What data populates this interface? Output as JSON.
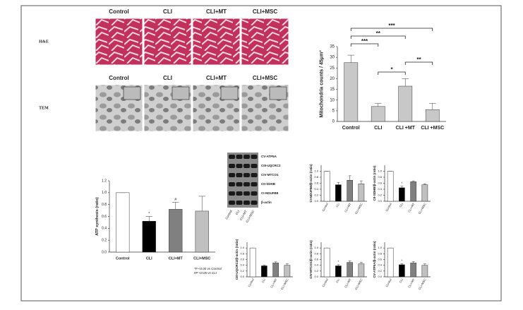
{
  "panels": {
    "histology": {
      "columns": [
        "Control",
        "CLI",
        "CLI+MT",
        "CLI+MSC"
      ],
      "rows": [
        "H&E",
        "TEM"
      ]
    },
    "blot": {
      "bands": [
        "CV-ATP5A",
        "CIII-UQCRC2",
        "CIV-MTCO1",
        "CII-SDHB",
        "CI-NDUFB8",
        "β-actin"
      ],
      "lanes": [
        "Control",
        "CLI",
        "CLI+MT",
        "CLI+MSC"
      ]
    }
  },
  "chart_data": [
    {
      "type": "bar",
      "ylabel": "Mitochondria counts / 45μm²",
      "categories": [
        "Control",
        "CLI",
        "CLI +MT",
        "CLI +MSC"
      ],
      "values": [
        27.5,
        7,
        16.5,
        5.5
      ],
      "errors": [
        3.5,
        1.5,
        3.5,
        3
      ],
      "colors": [
        "#c8c8c8",
        "#c8c8c8",
        "#c8c8c8",
        "#c8c8c8"
      ],
      "ylim": [
        0,
        35
      ],
      "yticks": [
        0,
        5,
        10,
        15,
        20,
        25,
        30,
        35
      ],
      "comparisons": [
        {
          "pair": [
            "Control",
            "CLI +MSC"
          ],
          "label": "***"
        },
        {
          "pair": [
            "Control",
            "CLI +MT"
          ],
          "label": "**"
        },
        {
          "pair": [
            "Control",
            "CLI"
          ],
          "label": "***"
        },
        {
          "pair": [
            "CLI +MT",
            "CLI +MSC"
          ],
          "label": "**"
        },
        {
          "pair": [
            "CLI",
            "CLI +MT"
          ],
          "label": "*"
        }
      ]
    },
    {
      "type": "bar",
      "ylabel": "ATP synthesis (ratio)",
      "categories": [
        "Control",
        "CLI",
        "CLI+MT",
        "CLI+MSC"
      ],
      "values": [
        1.0,
        0.52,
        0.72,
        0.69
      ],
      "errors": [
        0,
        0.08,
        0.12,
        0.25
      ],
      "colors": [
        "#ffffff",
        "#000000",
        "#808080",
        "#c0c0c0"
      ],
      "ylim": [
        0,
        1.2
      ],
      "yticks": [
        {
          "value": 0,
          "label": "0.0"
        },
        0.2,
        0.4,
        0.6,
        0.8,
        {
          "value": 1,
          "label": "1.0"
        },
        1.2
      ],
      "markers": [
        null,
        "*",
        "#",
        null
      ],
      "notes": [
        "*P <0.05 vs Control",
        "#P <0.05 vs CLI"
      ]
    },
    {
      "type": "bar",
      "ylabel": "CI-NDUFB8/β-actin (ratio)",
      "categories": [
        "Control",
        "CLI",
        "CLI+MT",
        "CLI+MSC"
      ],
      "values": [
        1.0,
        0.55,
        0.7,
        0.58
      ],
      "errors": [
        0,
        0.08,
        0.15,
        0.1
      ],
      "colors": [
        "#ffffff",
        "#000000",
        "#808080",
        "#c0c0c0"
      ],
      "ylim": [
        0,
        1.2
      ],
      "yticks": [
        {
          "value": 0,
          "label": "0.0"
        },
        0.2,
        0.4,
        0.6,
        0.8,
        {
          "value": 1,
          "label": "1.0"
        }
      ]
    },
    {
      "type": "bar",
      "ylabel": "CII-SDHB/β-actin (ratio)",
      "categories": [
        "Control",
        "CLI",
        "CLI+MT",
        "CLI+MSC"
      ],
      "values": [
        1.0,
        0.45,
        0.65,
        0.55
      ],
      "errors": [
        0,
        0.05,
        0.03,
        0.03
      ],
      "colors": [
        "#ffffff",
        "#000000",
        "#808080",
        "#c0c0c0"
      ],
      "ylim": [
        0,
        1.2
      ],
      "yticks": [
        {
          "value": 0,
          "label": "0.0"
        },
        0.2,
        0.4,
        0.6,
        0.8,
        {
          "value": 1,
          "label": "1.0"
        }
      ],
      "markers": [
        null,
        "*",
        null,
        null
      ]
    },
    {
      "type": "bar",
      "ylabel": "CIII-UQCRC2/β-actin (ratio)",
      "categories": [
        "Control",
        "CLI",
        "CLI+MT",
        "CLI+MSC"
      ],
      "values": [
        1.0,
        0.38,
        0.48,
        0.4
      ],
      "errors": [
        0,
        0.03,
        0.04,
        0.06
      ],
      "colors": [
        "#ffffff",
        "#000000",
        "#808080",
        "#c0c0c0"
      ],
      "ylim": [
        0,
        1.2
      ],
      "yticks": [
        {
          "value": 0,
          "label": "0.0"
        },
        0.2,
        0.4,
        0.6,
        0.8,
        {
          "value": 1,
          "label": "1.0"
        }
      ]
    },
    {
      "type": "bar",
      "ylabel": "CIV-MTCO1/β-actin (ratio)",
      "categories": [
        "Control",
        "CLI",
        "CLI+MT",
        "CLI+MSC"
      ],
      "values": [
        1.0,
        0.38,
        0.5,
        0.45
      ],
      "errors": [
        0,
        0.04,
        0.05,
        0.05
      ],
      "colors": [
        "#ffffff",
        "#000000",
        "#808080",
        "#c0c0c0"
      ],
      "ylim": [
        0,
        1.2
      ],
      "yticks": [
        {
          "value": 0,
          "label": "0.0"
        },
        0.2,
        0.4,
        0.6,
        0.8,
        {
          "value": 1,
          "label": "1.0"
        }
      ],
      "markers": [
        null,
        "*",
        null,
        null
      ]
    },
    {
      "type": "bar",
      "ylabel": "CV-ATP5A/β-actin (ratio)",
      "categories": [
        "Control",
        "CLI",
        "CLI+MT",
        "CLI+MSC"
      ],
      "values": [
        1.0,
        0.42,
        0.48,
        0.4
      ],
      "errors": [
        0,
        0.04,
        0.05,
        0.05
      ],
      "colors": [
        "#ffffff",
        "#000000",
        "#808080",
        "#c0c0c0"
      ],
      "ylim": [
        0,
        1.2
      ],
      "yticks": [
        {
          "value": 0,
          "label": "0.0"
        },
        0.2,
        0.4,
        0.6,
        0.8,
        {
          "value": 1,
          "label": "1.0"
        }
      ],
      "markers": [
        null,
        "*",
        null,
        null
      ]
    }
  ]
}
